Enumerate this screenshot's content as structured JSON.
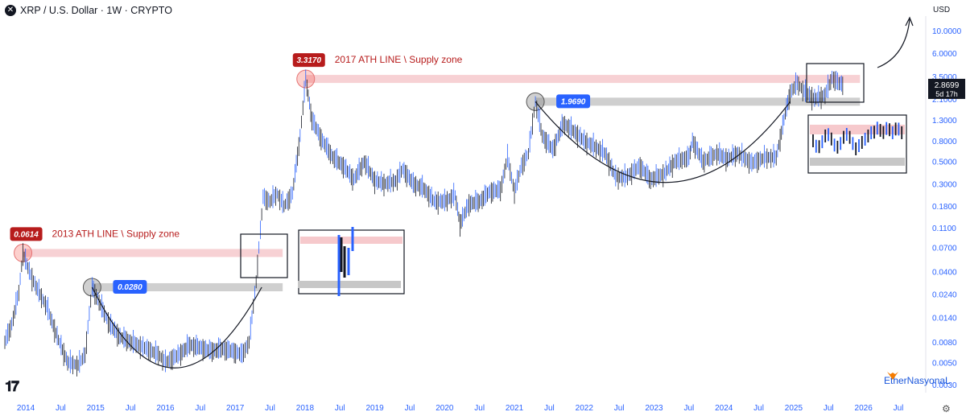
{
  "header": {
    "symbol_line": "XRP / U.S. Dollar · 1W · CRYPTO",
    "logo_icon": "xrp-x-icon"
  },
  "currency": "USD",
  "watermark": "EtherNasyonaL",
  "tv_logo": "TV",
  "settings_icon": "gear-icon",
  "colors": {
    "price": "#1e3a8a",
    "candle_up": "#2962ff",
    "candle_down": "#131722",
    "supply": "#f6c9cc",
    "support": "#c7c7c7",
    "red_label": "#b71c1c",
    "blue_label": "#2962ff"
  },
  "chart_data": {
    "type": "line",
    "scale": "log",
    "ylim": [
      0.0025,
      14
    ],
    "x_ticks": [
      "2014",
      "Jul",
      "2015",
      "Jul",
      "2016",
      "Jul",
      "2017",
      "Jul",
      "2018",
      "Jul",
      "2019",
      "Jul",
      "2020",
      "Jul",
      "2021",
      "Jul",
      "2022",
      "Jul",
      "2023",
      "Jul",
      "2024",
      "Jul",
      "2025",
      "Jul",
      "2026",
      "Jul"
    ],
    "y_ticks": [
      "10.0000",
      "6.0000",
      "3.5000",
      "2.1000",
      "1.3000",
      "0.8000",
      "0.5000",
      "0.3000",
      "0.1800",
      "0.1100",
      "0.0700",
      "0.0400",
      "0.0240",
      "0.0140",
      "0.0080",
      "0.0050",
      "0.0030"
    ],
    "y_tick_values": [
      10,
      6,
      3.5,
      2.1,
      1.3,
      0.8,
      0.5,
      0.3,
      0.18,
      0.11,
      0.07,
      0.04,
      0.024,
      0.014,
      0.008,
      0.005,
      0.003
    ],
    "last_price": {
      "value": "2.8699",
      "countdown": "5d 17h"
    },
    "series": [
      {
        "points": [
          [
            2013.7,
            0.008
          ],
          [
            2013.8,
            0.012
          ],
          [
            2013.9,
            0.025
          ],
          [
            2013.96,
            0.0614
          ],
          [
            2014.05,
            0.04
          ],
          [
            2014.15,
            0.028
          ],
          [
            2014.3,
            0.018
          ],
          [
            2014.45,
            0.009
          ],
          [
            2014.6,
            0.005
          ],
          [
            2014.75,
            0.0047
          ],
          [
            2014.85,
            0.006
          ],
          [
            2014.95,
            0.028
          ],
          [
            2015.05,
            0.02
          ],
          [
            2015.2,
            0.012
          ],
          [
            2015.35,
            0.009
          ],
          [
            2015.5,
            0.008
          ],
          [
            2015.7,
            0.007
          ],
          [
            2015.9,
            0.006
          ],
          [
            2016.0,
            0.005
          ],
          [
            2016.2,
            0.006
          ],
          [
            2016.35,
            0.0075
          ],
          [
            2016.5,
            0.007
          ],
          [
            2016.65,
            0.0065
          ],
          [
            2016.8,
            0.0068
          ],
          [
            2016.95,
            0.0065
          ],
          [
            2017.1,
            0.006
          ],
          [
            2017.2,
            0.008
          ],
          [
            2017.3,
            0.032
          ],
          [
            2017.4,
            0.22
          ],
          [
            2017.5,
            0.2
          ],
          [
            2017.6,
            0.24
          ],
          [
            2017.7,
            0.18
          ],
          [
            2017.82,
            0.24
          ],
          [
            2017.93,
            0.9
          ],
          [
            2018.01,
            3.317
          ],
          [
            2018.1,
            1.3
          ],
          [
            2018.25,
            0.8
          ],
          [
            2018.4,
            0.55
          ],
          [
            2018.55,
            0.45
          ],
          [
            2018.7,
            0.33
          ],
          [
            2018.85,
            0.5
          ],
          [
            2019.0,
            0.32
          ],
          [
            2019.15,
            0.3
          ],
          [
            2019.3,
            0.32
          ],
          [
            2019.4,
            0.42
          ],
          [
            2019.55,
            0.3
          ],
          [
            2019.7,
            0.27
          ],
          [
            2019.85,
            0.2
          ],
          [
            2020.0,
            0.2
          ],
          [
            2020.15,
            0.23
          ],
          [
            2020.22,
            0.12
          ],
          [
            2020.35,
            0.19
          ],
          [
            2020.5,
            0.2
          ],
          [
            2020.65,
            0.25
          ],
          [
            2020.8,
            0.26
          ],
          [
            2020.9,
            0.55
          ],
          [
            2021.0,
            0.25
          ],
          [
            2021.1,
            0.45
          ],
          [
            2021.2,
            0.6
          ],
          [
            2021.3,
            1.969
          ],
          [
            2021.4,
            0.9
          ],
          [
            2021.55,
            0.65
          ],
          [
            2021.7,
            1.2
          ],
          [
            2021.85,
            1.0
          ],
          [
            2022.0,
            0.8
          ],
          [
            2022.15,
            0.7
          ],
          [
            2022.3,
            0.6
          ],
          [
            2022.45,
            0.35
          ],
          [
            2022.6,
            0.35
          ],
          [
            2022.8,
            0.45
          ],
          [
            2022.95,
            0.33
          ],
          [
            2023.15,
            0.38
          ],
          [
            2023.3,
            0.5
          ],
          [
            2023.5,
            0.55
          ],
          [
            2023.55,
            0.8
          ],
          [
            2023.7,
            0.5
          ],
          [
            2023.9,
            0.6
          ],
          [
            2024.05,
            0.53
          ],
          [
            2024.2,
            0.6
          ],
          [
            2024.4,
            0.48
          ],
          [
            2024.6,
            0.55
          ],
          [
            2024.75,
            0.55
          ],
          [
            2024.88,
            1.5
          ],
          [
            2024.95,
            2.4
          ],
          [
            2025.05,
            3.0
          ],
          [
            2025.15,
            2.5
          ],
          [
            2025.3,
            2.1
          ],
          [
            2025.45,
            2.3
          ],
          [
            2025.55,
            3.4
          ],
          [
            2025.65,
            3.0
          ],
          [
            2025.72,
            2.8699
          ]
        ]
      }
    ],
    "levels": [
      {
        "label": "0.0614",
        "value": 0.0614,
        "kind": "supply",
        "caption": "2013 ATH LINE \\ Supply zone"
      },
      {
        "label": "0.0280",
        "value": 0.028,
        "kind": "support"
      },
      {
        "label": "3.3170",
        "value": 3.317,
        "kind": "supply",
        "caption": "2017 ATH LINE \\ Supply zone"
      },
      {
        "label": "1.9690",
        "value": 1.969,
        "kind": "support"
      }
    ],
    "up_arrow": true
  }
}
